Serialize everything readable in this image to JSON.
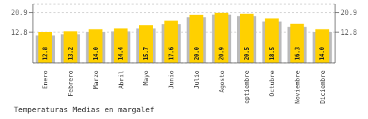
{
  "chart_data": {
    "type": "bar",
    "title": "Temperaturas Medias en margalef",
    "categories": [
      "Enero",
      "Febrero",
      "Marzo",
      "Abril",
      "Mayo",
      "Junio",
      "Julio",
      "Agosto",
      "Septiembre",
      "Octubre",
      "Noviembre",
      "Diciembre"
    ],
    "series": [
      {
        "color": "#BBBBBB",
        "values": [
          11.5,
          11.9,
          12.8,
          13.1,
          14.4,
          16.2,
          19.0,
          20.1,
          19.5,
          17.2,
          15.0,
          12.8
        ]
      },
      {
        "color": "#FFD000",
        "values": [
          12.8,
          13.2,
          14.0,
          14.4,
          15.7,
          17.6,
          20.0,
          20.9,
          20.5,
          18.5,
          16.3,
          14.0
        ],
        "data_labels": true,
        "value_labels": [
          "12.8",
          "13.2",
          "14.0",
          "14.4",
          "15.7",
          "17.6",
          "20.0",
          "20.9",
          "20.5",
          "18.5",
          "16.3",
          "14.0"
        ]
      }
    ],
    "ylim": [
      0,
      24.5
    ],
    "yticks": [
      12.8,
      20.9
    ],
    "y2lim": [
      0,
      24.5
    ],
    "y2ticks": [
      12.8,
      20.9
    ],
    "grid": true
  }
}
